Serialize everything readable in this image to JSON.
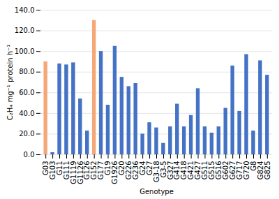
{
  "chart_data": {
    "type": "bar",
    "categories": [
      "G03",
      "G103",
      "G11",
      "G111",
      "G1119",
      "G1126",
      "G126",
      "G152",
      "G177",
      "G19",
      "G1926",
      "G20",
      "G226",
      "G236",
      "G24",
      "G27",
      "G3-18",
      "G3-5",
      "G327",
      "G414",
      "G418",
      "G421",
      "G427",
      "G511",
      "G515",
      "G516",
      "G602",
      "G627",
      "G717",
      "G720",
      "G8",
      "G824",
      "G825"
    ],
    "values": [
      90,
      2,
      88,
      87,
      89,
      54,
      23,
      130,
      100,
      48,
      105,
      75,
      66,
      69,
      20,
      31,
      26,
      11,
      27,
      49,
      27,
      38,
      64,
      27,
      21,
      27,
      45,
      86,
      42,
      97,
      23,
      91,
      77
    ],
    "colors": [
      "#f4a878",
      "#4472c4",
      "#4472c4",
      "#4472c4",
      "#4472c4",
      "#4472c4",
      "#4472c4",
      "#f4a878",
      "#4472c4",
      "#4472c4",
      "#4472c4",
      "#4472c4",
      "#4472c4",
      "#4472c4",
      "#4472c4",
      "#4472c4",
      "#4472c4",
      "#4472c4",
      "#4472c4",
      "#4472c4",
      "#4472c4",
      "#4472c4",
      "#4472c4",
      "#4472c4",
      "#4472c4",
      "#4472c4",
      "#4472c4",
      "#4472c4",
      "#4472c4",
      "#4472c4",
      "#4472c4",
      "#4472c4",
      "#4472c4"
    ],
    "xlabel": "Genotype",
    "ylabel": "C₂H₄ mg⁻¹ protein h⁻¹",
    "ylim": [
      0,
      140
    ],
    "yticks": [
      {
        "value": 0,
        "label": "0.0"
      },
      {
        "value": 20,
        "label": "20.0"
      },
      {
        "value": 40,
        "label": "40.0"
      },
      {
        "value": 60,
        "label": "60.0"
      },
      {
        "value": 80,
        "label": "80.0"
      },
      {
        "value": 100,
        "label": "100.0"
      },
      {
        "value": 120,
        "label": "120.0"
      },
      {
        "value": 140,
        "label": "140.0"
      }
    ],
    "grid": true
  }
}
